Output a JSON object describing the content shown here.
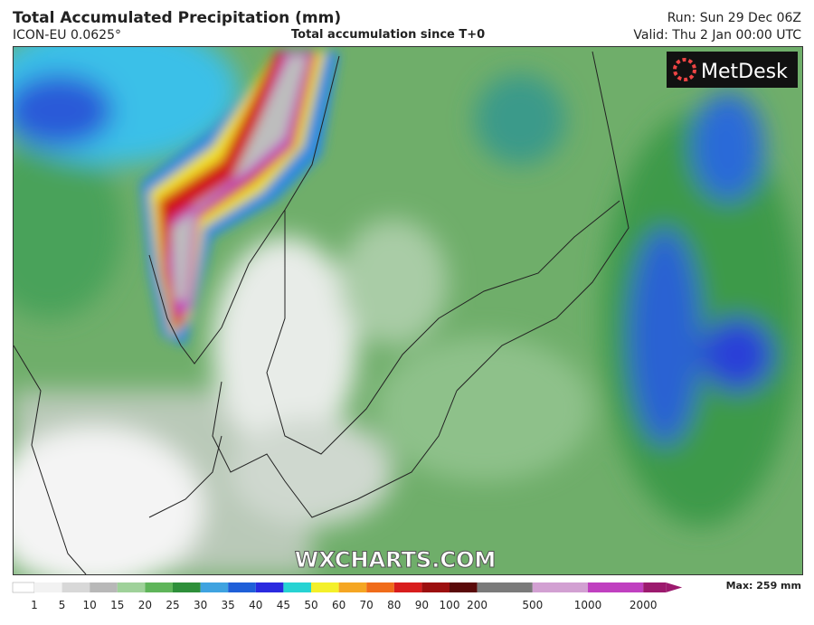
{
  "header": {
    "title": "Total Accumulated Precipitation (mm)",
    "model": "ICON-EU 0.0625°",
    "subtitle": "Total accumulation since T+0",
    "run": "Run: Sun 29 Dec 06Z",
    "valid": "Valid: Thu 2 Jan 00:00 UTC"
  },
  "map": {
    "brand": "MetDesk",
    "watermark": "WXCHARTS.COM"
  },
  "legend": {
    "ticks": [
      1,
      5,
      10,
      15,
      20,
      25,
      30,
      35,
      40,
      45,
      50,
      60,
      70,
      80,
      90,
      100,
      200,
      500,
      1000,
      2000
    ],
    "colors": [
      "#f2f2f2",
      "#d8d8d8",
      "#b8b8b8",
      "#9fd19a",
      "#5fb55a",
      "#2e8f3a",
      "#3fa3e0",
      "#1f5fd8",
      "#2a2adf",
      "#26d3d3",
      "#f4f02a",
      "#f5a623",
      "#f06c1a",
      "#d81d1d",
      "#9c0f0f",
      "#5a0a0a",
      "#7a7a7a",
      "#d2a0d2",
      "#c040c0",
      "#9c1a6e"
    ],
    "max_label": "Max: 259 mm"
  }
}
